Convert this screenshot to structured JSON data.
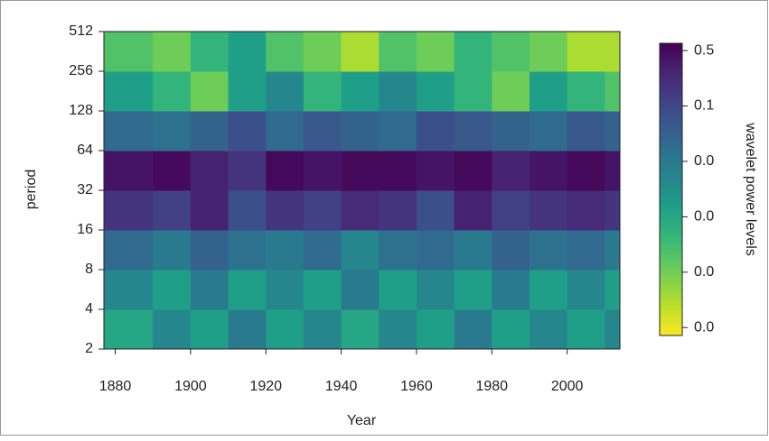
{
  "chart_data": {
    "type": "heatmap",
    "x_label": "Year",
    "y_label": "period",
    "colorbar_label": "wavelet power levels",
    "x_bins": [
      1877,
      1890,
      1900,
      1910,
      1920,
      1930,
      1940,
      1950,
      1960,
      1970,
      1980,
      1990,
      2000,
      2010,
      2014
    ],
    "y_bins": [
      2,
      4,
      8,
      16,
      32,
      64,
      128,
      256,
      512
    ],
    "z": [
      [
        0.008,
        0.02,
        0.01,
        0.03,
        0.01,
        0.02,
        0.008,
        0.02,
        0.01,
        0.03,
        0.01,
        0.02,
        0.01,
        0.02
      ],
      [
        0.02,
        0.01,
        0.03,
        0.01,
        0.02,
        0.01,
        0.03,
        0.01,
        0.02,
        0.01,
        0.03,
        0.01,
        0.02,
        0.01
      ],
      [
        0.05,
        0.03,
        0.06,
        0.04,
        0.03,
        0.05,
        0.02,
        0.04,
        0.05,
        0.03,
        0.06,
        0.04,
        0.05,
        0.03
      ],
      [
        0.2,
        0.15,
        0.3,
        0.1,
        0.2,
        0.15,
        0.25,
        0.2,
        0.1,
        0.3,
        0.15,
        0.2,
        0.25,
        0.2
      ],
      [
        0.4,
        0.5,
        0.3,
        0.2,
        0.5,
        0.4,
        0.5,
        0.5,
        0.4,
        0.5,
        0.3,
        0.4,
        0.5,
        0.4
      ],
      [
        0.05,
        0.04,
        0.06,
        0.1,
        0.05,
        0.08,
        0.06,
        0.05,
        0.1,
        0.08,
        0.06,
        0.05,
        0.08,
        0.06
      ],
      [
        0.01,
        0.005,
        0.002,
        0.01,
        0.02,
        0.005,
        0.01,
        0.02,
        0.01,
        0.005,
        0.002,
        0.01,
        0.005,
        0.003
      ],
      [
        0.003,
        0.002,
        0.005,
        0.01,
        0.003,
        0.002,
        0.001,
        0.003,
        0.002,
        0.005,
        0.003,
        0.002,
        0.001,
        0.001
      ]
    ],
    "xlim": [
      1877,
      2014
    ],
    "xticks": [
      1880,
      1900,
      1920,
      1940,
      1960,
      1980,
      2000
    ],
    "ylim": [
      2,
      512
    ],
    "y_log": true,
    "yticks": [
      2,
      4,
      8,
      16,
      32,
      64,
      128,
      256,
      512
    ],
    "zlim": [
      0.0004,
      0.6
    ],
    "z_log": true,
    "zticks": [
      {
        "value": 0.5,
        "label": "0.5"
      },
      {
        "value": 0.125,
        "label": "0.1"
      },
      {
        "value": 0.03125,
        "label": "0.0"
      },
      {
        "value": 0.0078,
        "label": "0.0"
      },
      {
        "value": 0.00195,
        "label": "0.0"
      },
      {
        "value": 0.000488,
        "label": "0.0"
      }
    ]
  }
}
